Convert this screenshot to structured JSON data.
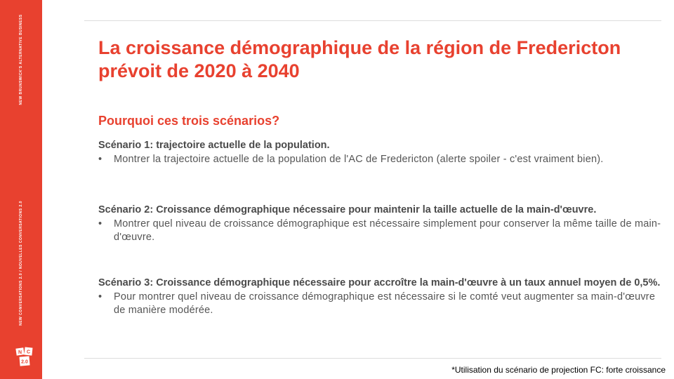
{
  "sidebar": {
    "vertical_text_top": "NEW BRUNSWICK'S ALTERNATIVE BUSINESS",
    "vertical_text_mid": "NEW CONVERSATIONS 2.0 / NOUVELLES CONVERSATIONS 2.0",
    "logo": {
      "letters": [
        "N",
        "C",
        "2.0"
      ]
    }
  },
  "slide": {
    "title": "La croissance démographique de la région de Fredericton prévoit de 2020 à 2040",
    "subtitle": "Pourquoi ces trois scénarios?",
    "scenarios": [
      {
        "heading": "Scénario 1: trajectoire actuelle de la population.",
        "bullet_marker": "•",
        "bullet": "Montrer la trajectoire actuelle de la population de l'AC de Fredericton (alerte spoiler - c'est vraiment bien)."
      },
      {
        "heading": "Scénario 2: Croissance démographique nécessaire pour maintenir la taille actuelle de la main-d'œuvre.",
        "bullet_marker": "•",
        "bullet": "Montrer quel niveau de croissance démographique est nécessaire simplement pour conserver la même taille de main-d'œuvre."
      },
      {
        "heading": "Scénario 3: Croissance démographique nécessaire pour accroître la main-d'œuvre à un taux annuel moyen de 0,5%.",
        "bullet_marker": "•",
        "bullet": "Pour montrer quel niveau de croissance démographique est nécessaire si le comté veut augmenter sa main-d'œuvre de manière modérée."
      }
    ],
    "footnote": "*Utilisation du scénario de projection FC: forte croissance"
  },
  "colors": {
    "accent": "#e8412f",
    "text": "#4a4a4a",
    "rule": "#dddddd"
  }
}
